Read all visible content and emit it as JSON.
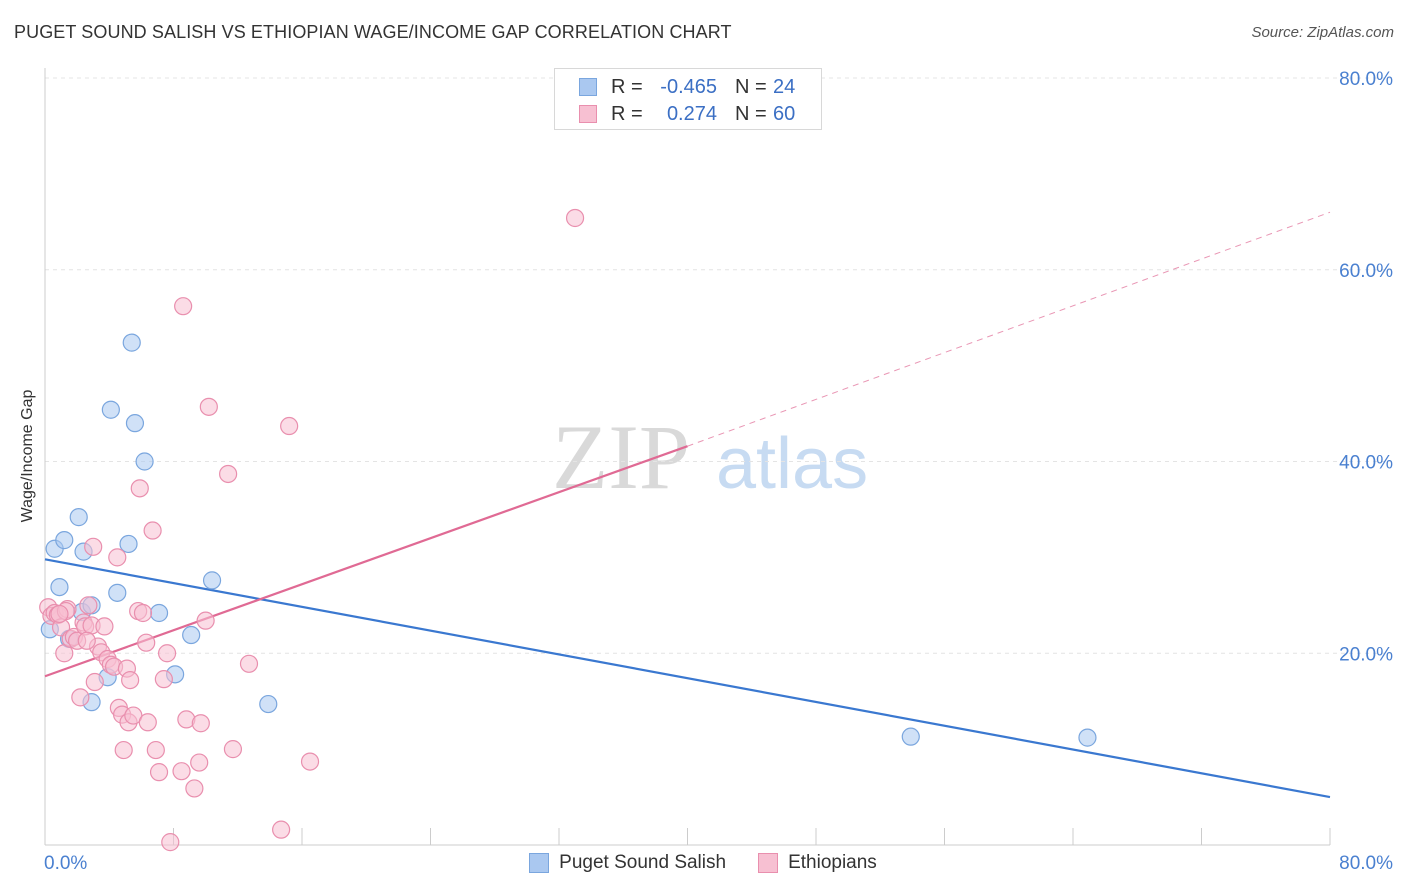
{
  "title": "PUGET SOUND SALISH VS ETHIOPIAN WAGE/INCOME GAP CORRELATION CHART",
  "source": "Source: ZipAtlas.com",
  "watermark": {
    "zip": "ZIP",
    "atlas": "atlas"
  },
  "legend": {
    "rows": [
      {
        "r_label": "R =",
        "r_value": "-0.465",
        "n_label": "N =",
        "n_value": "24",
        "color": "#aac8f0",
        "stroke": "#7aa6de"
      },
      {
        "r_label": "R =",
        "r_value": "0.274",
        "n_label": "N =",
        "n_value": "60",
        "color": "#f7c0d2",
        "stroke": "#e98fae"
      }
    ]
  },
  "bottom_legend": [
    {
      "label": "Puget Sound Salish",
      "color": "#aac8f0",
      "stroke": "#7aa6de"
    },
    {
      "label": "Ethiopians",
      "color": "#f7c0d2",
      "stroke": "#e98fae"
    }
  ],
  "chart_data": {
    "type": "scatter",
    "title": "PUGET SOUND SALISH VS ETHIOPIAN WAGE/INCOME GAP CORRELATION CHART",
    "xlabel": "",
    "ylabel": "Wage/Income Gap",
    "xlim": [
      0,
      80
    ],
    "ylim": [
      0,
      80
    ],
    "x_tick_labels": [
      "0.0%",
      "80.0%"
    ],
    "y_ticks": [
      20,
      40,
      60,
      80
    ],
    "y_tick_labels": [
      "20.0%",
      "40.0%",
      "60.0%",
      "80.0%"
    ],
    "grid": true,
    "series": [
      {
        "name": "Puget Sound Salish",
        "color": "#aac8f0",
        "stroke": "#7aa6de",
        "line_color": "#3a78d0",
        "trend": {
          "x": [
            0,
            80
          ],
          "y": [
            29.8,
            5.0
          ]
        },
        "points": [
          {
            "x": 0.3,
            "y": 22.5
          },
          {
            "x": 0.6,
            "y": 30.9
          },
          {
            "x": 0.9,
            "y": 26.9
          },
          {
            "x": 1.2,
            "y": 31.8
          },
          {
            "x": 1.5,
            "y": 21.5
          },
          {
            "x": 2.1,
            "y": 34.2
          },
          {
            "x": 2.3,
            "y": 24.3
          },
          {
            "x": 2.4,
            "y": 30.6
          },
          {
            "x": 2.9,
            "y": 25.0
          },
          {
            "x": 2.9,
            "y": 14.9
          },
          {
            "x": 3.9,
            "y": 17.5
          },
          {
            "x": 4.1,
            "y": 45.4
          },
          {
            "x": 4.5,
            "y": 26.3
          },
          {
            "x": 5.2,
            "y": 31.4
          },
          {
            "x": 5.4,
            "y": 52.4
          },
          {
            "x": 5.6,
            "y": 44.0
          },
          {
            "x": 6.2,
            "y": 40.0
          },
          {
            "x": 7.1,
            "y": 24.2
          },
          {
            "x": 8.1,
            "y": 17.8
          },
          {
            "x": 9.1,
            "y": 21.9
          },
          {
            "x": 10.4,
            "y": 27.6
          },
          {
            "x": 13.9,
            "y": 14.7
          },
          {
            "x": 53.9,
            "y": 11.3
          },
          {
            "x": 64.9,
            "y": 11.2
          }
        ]
      },
      {
        "name": "Ethiopians",
        "color": "#f7c0d2",
        "stroke": "#e98fae",
        "line_color": "#e06a94",
        "trend": {
          "x": [
            0,
            40
          ],
          "y": [
            17.6,
            41.6
          ]
        },
        "trend_dashed": {
          "x": [
            40,
            80
          ],
          "y": [
            41.6,
            66.0
          ]
        },
        "points": [
          {
            "x": 0.2,
            "y": 24.8
          },
          {
            "x": 0.4,
            "y": 23.9
          },
          {
            "x": 0.6,
            "y": 24.2
          },
          {
            "x": 0.8,
            "y": 24.0
          },
          {
            "x": 1.0,
            "y": 22.7
          },
          {
            "x": 1.2,
            "y": 20.0
          },
          {
            "x": 1.4,
            "y": 24.6
          },
          {
            "x": 1.6,
            "y": 21.5
          },
          {
            "x": 1.8,
            "y": 21.7
          },
          {
            "x": 2.0,
            "y": 21.3
          },
          {
            "x": 2.2,
            "y": 15.4
          },
          {
            "x": 2.4,
            "y": 23.2
          },
          {
            "x": 2.5,
            "y": 22.8
          },
          {
            "x": 2.7,
            "y": 25.0
          },
          {
            "x": 2.9,
            "y": 22.9
          },
          {
            "x": 3.0,
            "y": 31.1
          },
          {
            "x": 3.1,
            "y": 17.0
          },
          {
            "x": 3.3,
            "y": 20.7
          },
          {
            "x": 3.5,
            "y": 20.1
          },
          {
            "x": 3.7,
            "y": 22.8
          },
          {
            "x": 3.9,
            "y": 19.4
          },
          {
            "x": 4.1,
            "y": 18.8
          },
          {
            "x": 4.3,
            "y": 18.6
          },
          {
            "x": 4.5,
            "y": 30.0
          },
          {
            "x": 4.6,
            "y": 14.3
          },
          {
            "x": 4.8,
            "y": 13.6
          },
          {
            "x": 4.9,
            "y": 9.9
          },
          {
            "x": 5.1,
            "y": 18.4
          },
          {
            "x": 5.2,
            "y": 12.8
          },
          {
            "x": 5.3,
            "y": 17.2
          },
          {
            "x": 5.5,
            "y": 13.5
          },
          {
            "x": 5.8,
            "y": 24.4
          },
          {
            "x": 5.9,
            "y": 37.2
          },
          {
            "x": 6.1,
            "y": 24.2
          },
          {
            "x": 6.3,
            "y": 21.1
          },
          {
            "x": 6.4,
            "y": 12.8
          },
          {
            "x": 6.7,
            "y": 32.8
          },
          {
            "x": 6.9,
            "y": 9.9
          },
          {
            "x": 7.1,
            "y": 7.6
          },
          {
            "x": 7.4,
            "y": 17.3
          },
          {
            "x": 7.6,
            "y": 20.0
          },
          {
            "x": 7.8,
            "y": 0.3
          },
          {
            "x": 8.5,
            "y": 7.7
          },
          {
            "x": 8.6,
            "y": 56.2
          },
          {
            "x": 8.8,
            "y": 13.1
          },
          {
            "x": 9.3,
            "y": 5.9
          },
          {
            "x": 9.6,
            "y": 8.6
          },
          {
            "x": 9.7,
            "y": 12.7
          },
          {
            "x": 10.0,
            "y": 23.4
          },
          {
            "x": 10.2,
            "y": 45.7
          },
          {
            "x": 11.4,
            "y": 38.7
          },
          {
            "x": 11.7,
            "y": 10.0
          },
          {
            "x": 12.7,
            "y": 18.9
          },
          {
            "x": 14.7,
            "y": 1.6
          },
          {
            "x": 15.2,
            "y": 43.7
          },
          {
            "x": 16.5,
            "y": 8.7
          },
          {
            "x": 33.0,
            "y": 65.4
          },
          {
            "x": 1.3,
            "y": 24.4
          },
          {
            "x": 2.6,
            "y": 21.3
          },
          {
            "x": 0.9,
            "y": 24.1
          }
        ]
      }
    ]
  }
}
